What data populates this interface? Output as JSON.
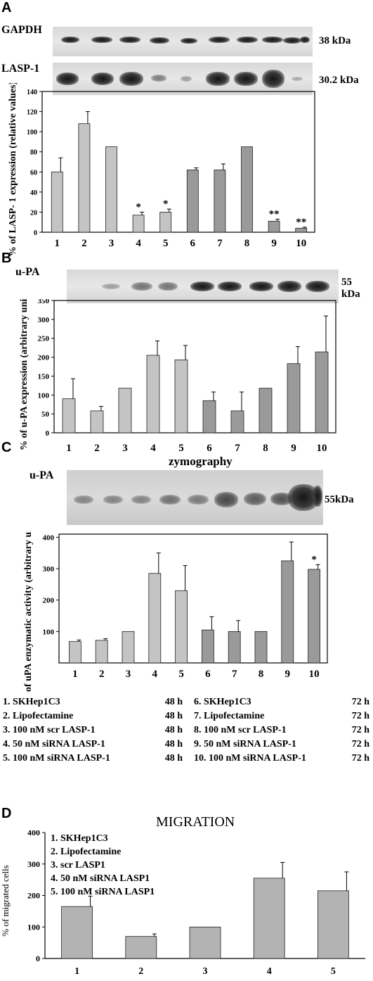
{
  "panelA": {
    "letter": "A",
    "blot1_label": "GAPDH",
    "blot1_kda": "38 kDa",
    "blot2_label": "LASP-1",
    "blot2_kda": "30.2 kDa"
  },
  "panelB": {
    "letter": "B",
    "blot_label": "u-PA",
    "blot_kda": "55 kDa"
  },
  "panelC": {
    "letter": "C",
    "title": "zymography",
    "blot_label": "u-PA",
    "blot_kda": "55kDa"
  },
  "panelD": {
    "letter": "D"
  },
  "legendC": {
    "left": [
      {
        "name": "1.  SKHep1C3",
        "time": "48 h"
      },
      {
        "name": "2.  Lipofectamine",
        "time": "48 h"
      },
      {
        "name": "3. 100 nM scr LASP-1",
        "time": "48 h"
      },
      {
        "name": "4.  50 nM siRNA LASP-1",
        "time": "48 h"
      },
      {
        "name": "5. 100 nM siRNA LASP-1",
        "time": "48 h"
      }
    ],
    "right": [
      {
        "name": "6.  SKHep1C3",
        "time": "72 h"
      },
      {
        "name": "7.  Lipofectamine",
        "time": "72 h"
      },
      {
        "name": "8. 100 nM scr LASP-1",
        "time": "72 h"
      },
      {
        "name": "9. 50 nM siRNA LASP-1",
        "time": "72 h"
      },
      {
        "name": "10. 100 nM siRNA LASP-1",
        "time": "72 h"
      }
    ]
  },
  "chart_data": [
    {
      "type": "bar",
      "panel": "A",
      "categories": [
        "1",
        "2",
        "3",
        "4",
        "5",
        "6",
        "7",
        "8",
        "9",
        "10"
      ],
      "values": [
        60,
        108,
        85,
        17,
        20,
        62,
        62,
        85,
        11,
        4
      ],
      "errors": [
        14,
        12,
        0,
        3,
        3,
        2,
        6,
        0,
        2,
        1
      ],
      "annotations": [
        "",
        "",
        "",
        "*",
        "*",
        "",
        "",
        "",
        "**",
        "**"
      ],
      "colors": [
        "#c4c4c4",
        "#c4c4c4",
        "#c4c4c4",
        "#c4c4c4",
        "#c4c4c4",
        "#9a9a9a",
        "#9a9a9a",
        "#9a9a9a",
        "#9a9a9a",
        "#9a9a9a"
      ],
      "ylabel": "% of LASP- 1 expression (relative values)",
      "yticks": [
        0,
        20,
        40,
        60,
        80,
        100,
        120,
        140
      ],
      "ylim": [
        0,
        140
      ],
      "grid": false
    },
    {
      "type": "bar",
      "panel": "B",
      "categories": [
        "1",
        "2",
        "3",
        "4",
        "5",
        "6",
        "7",
        "8",
        "9",
        "10"
      ],
      "values": [
        90,
        58,
        118,
        205,
        193,
        85,
        58,
        118,
        183,
        214
      ],
      "errors": [
        53,
        12,
        0,
        38,
        38,
        23,
        50,
        0,
        45,
        95
      ],
      "colors": [
        "#c4c4c4",
        "#c4c4c4",
        "#c4c4c4",
        "#c4c4c4",
        "#c4c4c4",
        "#9a9a9a",
        "#9a9a9a",
        "#9a9a9a",
        "#9a9a9a",
        "#9a9a9a"
      ],
      "ylabel": "% of u-PA expression (arbitrary units)",
      "yticks": [
        0,
        50,
        100,
        150,
        200,
        250,
        300,
        350
      ],
      "ylim": [
        0,
        350
      ],
      "grid": false
    },
    {
      "type": "bar",
      "panel": "C",
      "categories": [
        "1",
        "2",
        "3",
        "4",
        "5",
        "6",
        "7",
        "8",
        "9",
        "10"
      ],
      "values": [
        68,
        72,
        100,
        285,
        230,
        105,
        100,
        100,
        325,
        298
      ],
      "errors": [
        5,
        5,
        0,
        65,
        80,
        42,
        35,
        0,
        60,
        15
      ],
      "annotations": [
        "",
        "",
        "",
        "",
        "",
        "",
        "",
        "",
        "",
        "*"
      ],
      "colors": [
        "#c4c4c4",
        "#c4c4c4",
        "#c4c4c4",
        "#c4c4c4",
        "#c4c4c4",
        "#9a9a9a",
        "#9a9a9a",
        "#9a9a9a",
        "#9a9a9a",
        "#9a9a9a"
      ],
      "ylabel": "% of uPA enzymatic activity (arbitrary units)",
      "yticks": [
        100,
        200,
        300,
        400
      ],
      "ylim": [
        0,
        410
      ],
      "grid": false
    },
    {
      "type": "bar",
      "panel": "D",
      "title": "MIGRATION",
      "categories": [
        "1",
        "2",
        "3",
        "4",
        "5"
      ],
      "values": [
        165,
        70,
        100,
        255,
        215
      ],
      "errors": [
        33,
        8,
        0,
        50,
        60
      ],
      "colors": [
        "#b3b3b3",
        "#b3b3b3",
        "#b3b3b3",
        "#b3b3b3",
        "#b3b3b3"
      ],
      "legend": [
        "1.  SKHep1C3",
        "2.  Lipofectamine",
        "3.  scr LASP1",
        "4.  50 nM siRNA LASP1",
        "5.  100 nM siRNA LASP1"
      ],
      "ylabel": "% of migrated cells",
      "yticks": [
        0,
        100,
        200,
        300,
        400
      ],
      "ylim": [
        0,
        400
      ],
      "grid": false
    }
  ]
}
